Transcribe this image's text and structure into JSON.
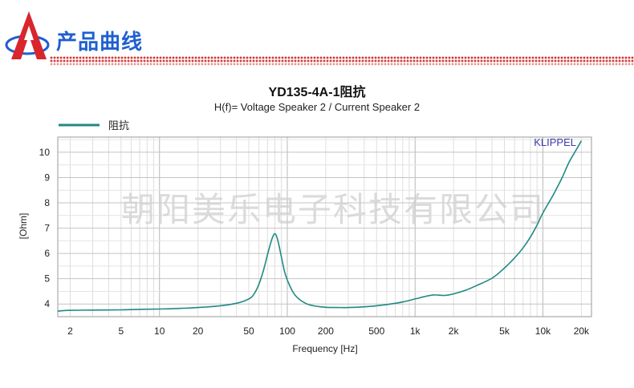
{
  "banner": {
    "title": "产品曲线",
    "colors": {
      "title": "#1f5fd0",
      "logo_red": "#d8262c",
      "logo_blue": "#1f5fd0",
      "dots": "#d23a3a"
    }
  },
  "watermark": "朝阳美乐电子科技有限公司",
  "branding": "KLIPPEL",
  "chart_data": {
    "type": "line",
    "title": "YD135-4A-1阻抗",
    "subtitle": "H(f)= Voltage Speaker 2 / Current Speaker 2",
    "xlabel": "Frequency [Hz]",
    "ylabel": "[Ohm]",
    "xscale": "log",
    "xlim": [
      1.6,
      24000
    ],
    "ylim": [
      3.5,
      10.6
    ],
    "grid": true,
    "legend_position": "top-left",
    "x_ticks": [
      {
        "value": 2,
        "label": "2"
      },
      {
        "value": 5,
        "label": "5"
      },
      {
        "value": 10,
        "label": "10"
      },
      {
        "value": 20,
        "label": "20"
      },
      {
        "value": 50,
        "label": "50"
      },
      {
        "value": 100,
        "label": "100"
      },
      {
        "value": 200,
        "label": "200"
      },
      {
        "value": 500,
        "label": "500"
      },
      {
        "value": 1000,
        "label": "1k"
      },
      {
        "value": 2000,
        "label": "2k"
      },
      {
        "value": 5000,
        "label": "5k"
      },
      {
        "value": 10000,
        "label": "10k"
      },
      {
        "value": 20000,
        "label": "20k"
      }
    ],
    "y_ticks": [
      4,
      5,
      6,
      7,
      8,
      9,
      10
    ],
    "series": [
      {
        "name": "阻抗",
        "color": "#1f8a82",
        "x": [
          1.6,
          2,
          3,
          5,
          7,
          10,
          15,
          20,
          30,
          40,
          50,
          55,
          60,
          65,
          70,
          75,
          78,
          80,
          82,
          85,
          90,
          95,
          100,
          110,
          120,
          140,
          160,
          200,
          250,
          300,
          400,
          500,
          600,
          800,
          1000,
          1200,
          1400,
          1700,
          2000,
          2500,
          3000,
          4000,
          5000,
          6000,
          7000,
          8000,
          9000,
          10000,
          12000,
          14000,
          16000,
          18000,
          20000
        ],
        "y": [
          3.72,
          3.75,
          3.76,
          3.77,
          3.79,
          3.8,
          3.83,
          3.86,
          3.93,
          4.03,
          4.2,
          4.4,
          4.78,
          5.32,
          5.95,
          6.5,
          6.72,
          6.78,
          6.7,
          6.45,
          5.85,
          5.3,
          4.95,
          4.5,
          4.25,
          4.02,
          3.93,
          3.87,
          3.86,
          3.86,
          3.89,
          3.93,
          3.98,
          4.08,
          4.2,
          4.3,
          4.36,
          4.34,
          4.4,
          4.55,
          4.72,
          5.02,
          5.42,
          5.82,
          6.22,
          6.65,
          7.12,
          7.6,
          8.3,
          8.95,
          9.6,
          10.05,
          10.45
        ]
      }
    ]
  }
}
